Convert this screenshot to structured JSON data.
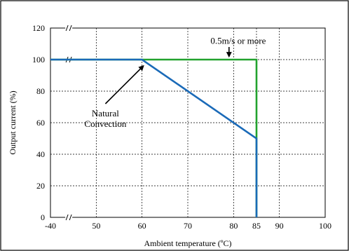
{
  "chart_data": {
    "type": "line",
    "xlabel": "Ambient temperature (ºC)",
    "ylabel": "Output current (%)",
    "ylim": [
      0,
      120
    ],
    "grid": true,
    "x_ticks": [
      {
        "label": "-40",
        "value": 40
      },
      {
        "label": "50",
        "value": 50
      },
      {
        "label": "60",
        "value": 60
      },
      {
        "label": "70",
        "value": 70
      },
      {
        "label": "80",
        "value": 80
      },
      {
        "label": "85",
        "value": 85
      },
      {
        "label": "90",
        "value": 90
      },
      {
        "label": "100",
        "value": 100
      }
    ],
    "y_ticks": [
      0,
      20,
      40,
      60,
      80,
      100,
      120
    ],
    "axis_breaks": {
      "x_at": 44,
      "y_at": 100,
      "bottom_at": 0
    },
    "series": [
      {
        "color": "#22a22e",
        "points": [
          [
            40,
            100
          ],
          [
            85,
            100
          ],
          [
            85,
            0
          ]
        ]
      },
      {
        "color": "#1a6ab8",
        "points": [
          [
            40,
            100
          ],
          [
            60,
            100
          ],
          [
            85,
            50
          ],
          [
            85,
            0
          ]
        ]
      }
    ],
    "annotations": [
      {
        "text_lines": [
          "0.5m/s or more"
        ],
        "text_at": [
          81,
          110
        ],
        "arrow_from": [
          79,
          108
        ],
        "arrow_to": [
          79,
          102
        ]
      },
      {
        "text_lines": [
          "Natural",
          "Convection"
        ],
        "text_at": [
          52,
          64
        ],
        "arrow_from": [
          52,
          72
        ],
        "arrow_to": [
          60.3,
          96
        ]
      }
    ]
  }
}
